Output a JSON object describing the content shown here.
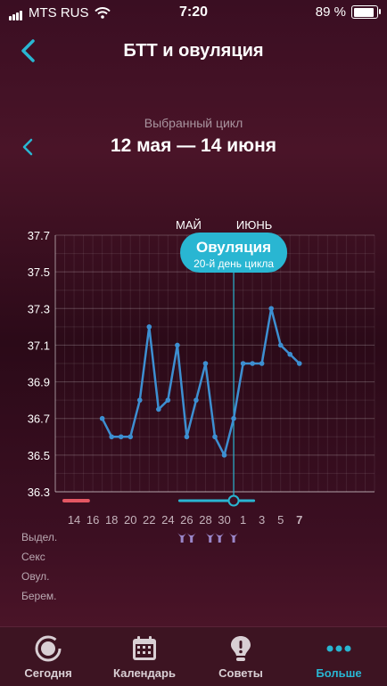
{
  "status_bar": {
    "carrier": "MTS RUS",
    "time": "7:20",
    "battery": "89 %",
    "battery_level": 0.89
  },
  "nav": {
    "title": "БТТ и овуляция",
    "back_icon": "chevron-left-icon"
  },
  "cycle": {
    "label": "Выбранный цикл",
    "range": "12 мая — 14 июня"
  },
  "colors": {
    "accent": "#29b6d2",
    "line": "#3d8fd1",
    "period": "#e45763",
    "heart": "#f05a78",
    "sperm": "#9a86c8"
  },
  "chart_data": {
    "type": "line",
    "y_ticks": [
      "37.7",
      "37.5",
      "37.3",
      "37.1",
      "36.9",
      "36.7",
      "36.5",
      "36.3"
    ],
    "ylim": [
      36.3,
      37.7
    ],
    "day_range": [
      12,
      46
    ],
    "x_ticks": [
      {
        "label": "14",
        "day": 14
      },
      {
        "label": "16",
        "day": 16
      },
      {
        "label": "18",
        "day": 18
      },
      {
        "label": "20",
        "day": 20
      },
      {
        "label": "22",
        "day": 22
      },
      {
        "label": "24",
        "day": 24
      },
      {
        "label": "26",
        "day": 26
      },
      {
        "label": "28",
        "day": 28
      },
      {
        "label": "30",
        "day": 30
      },
      {
        "label": "1",
        "day": 32
      },
      {
        "label": "3",
        "day": 34
      },
      {
        "label": "5",
        "day": 36
      },
      {
        "label": "7",
        "day": 38,
        "bold": true
      }
    ],
    "months": [
      {
        "label": "МАЙ",
        "day": 26
      },
      {
        "label": "ИЮНЬ",
        "day": 33
      }
    ],
    "series": [
      {
        "points": [
          [
            17,
            36.7
          ],
          [
            18,
            36.6
          ],
          [
            19,
            36.6
          ],
          [
            20,
            36.6
          ],
          [
            21,
            36.8
          ],
          [
            22,
            37.2
          ],
          [
            23,
            36.75
          ],
          [
            24,
            36.8
          ],
          [
            25,
            37.1
          ],
          [
            26,
            36.6
          ],
          [
            27,
            36.8
          ],
          [
            28,
            37.0
          ],
          [
            29,
            36.6
          ],
          [
            30,
            36.5
          ],
          [
            31,
            36.7
          ],
          [
            32,
            37.0
          ],
          [
            33,
            37.0
          ],
          [
            34,
            37.0
          ],
          [
            35,
            37.3
          ],
          [
            36,
            37.1
          ],
          [
            37,
            37.05
          ],
          [
            38,
            37.0
          ]
        ]
      }
    ],
    "ovulation": {
      "day": 31,
      "title": "Овуляция",
      "subtitle": "20-й день цикла"
    },
    "period_bar": [
      12,
      15.5
    ],
    "fertile_bar": [
      26,
      32
    ],
    "marker_rows": [
      "Выдел.",
      "Секс",
      "Овул.",
      "Берем."
    ],
    "discharge_days": [
      25.5,
      26.5,
      28.5,
      29.5,
      31
    ],
    "sex_days": [
      15,
      17,
      18,
      19,
      22,
      24,
      25,
      27,
      28,
      29,
      31,
      37
    ]
  },
  "tabs": [
    {
      "label": "Сегодня",
      "icon": "today-ring-icon"
    },
    {
      "label": "Календарь",
      "icon": "calendar-icon"
    },
    {
      "label": "Советы",
      "icon": "lightbulb-icon"
    },
    {
      "label": "Больше",
      "icon": "more-dots-icon",
      "active": true
    }
  ]
}
